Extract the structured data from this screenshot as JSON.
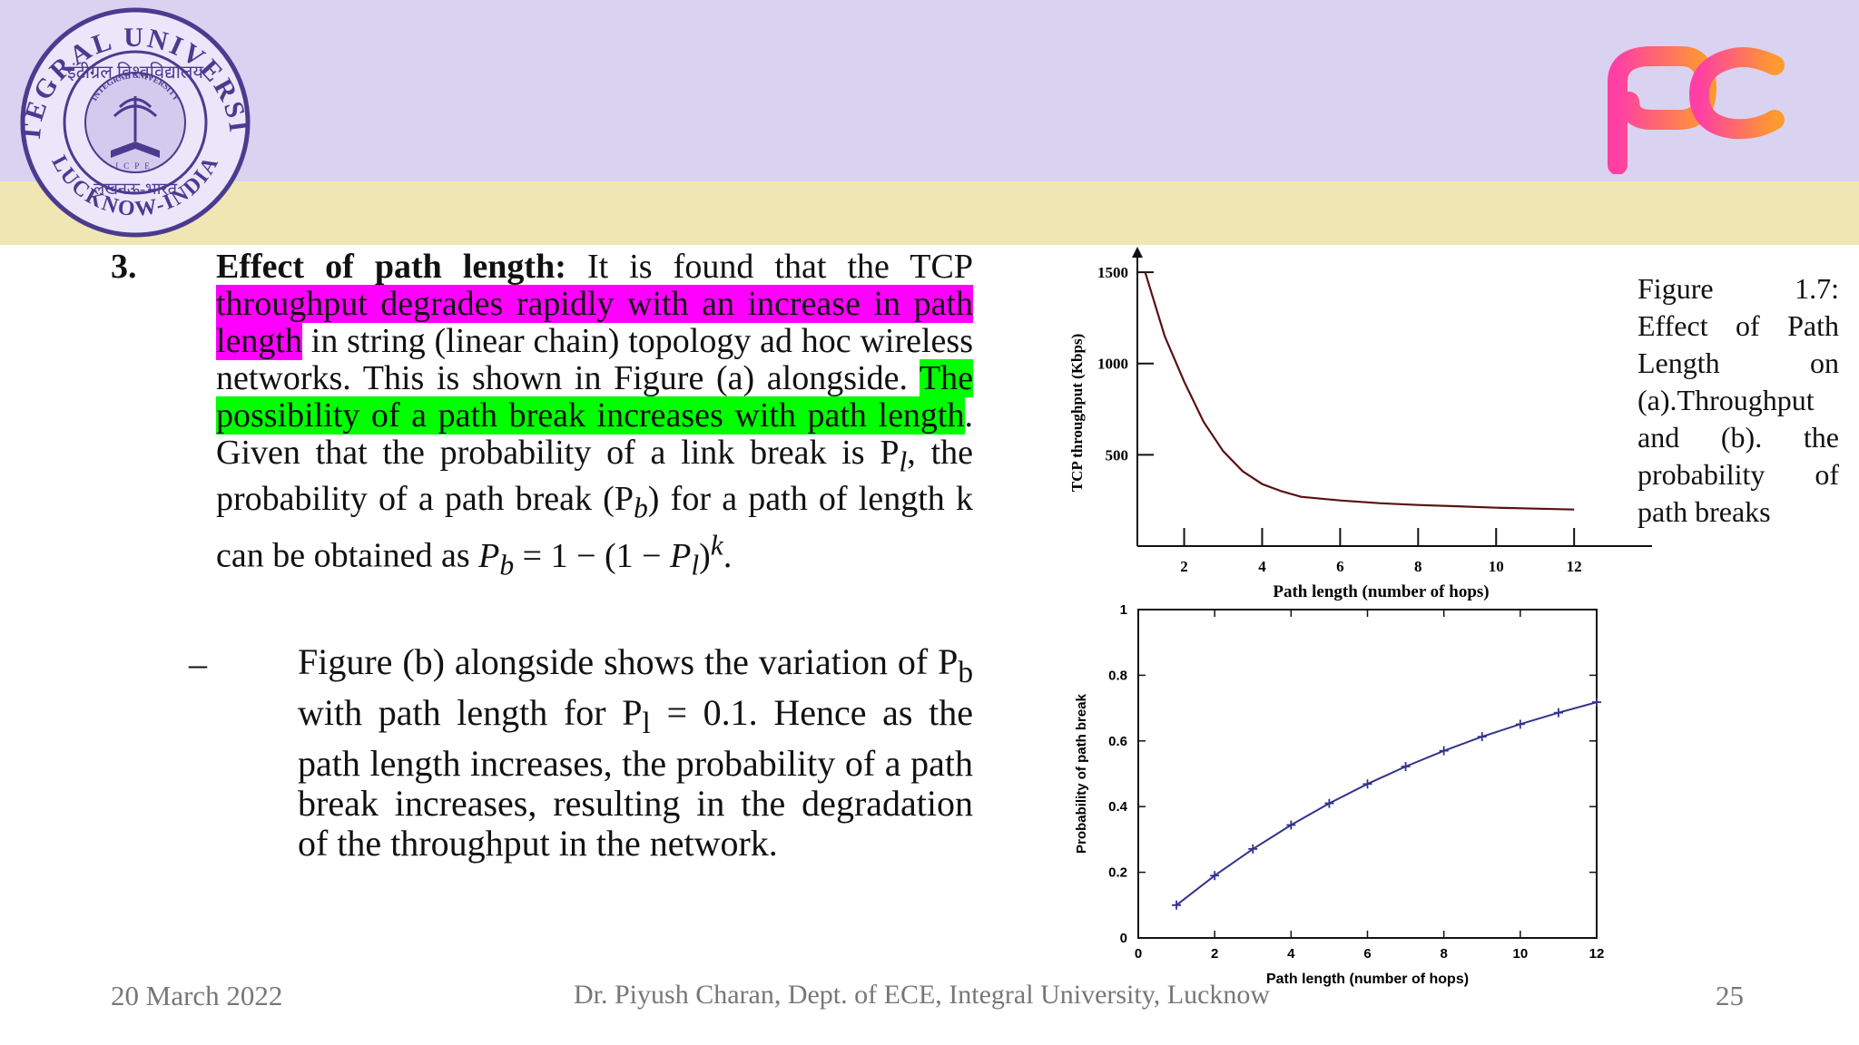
{
  "header": {
    "logo_left": {
      "text_top": "INTEGRAL UNIVERSITY",
      "text_bottom": "LUCKNOW-INDIA",
      "text_hindi": "इंटीग्रल विश्वविद्यालय",
      "text_hindi_city": "लखनऊ-भारत",
      "text_center": "INTEGRAL UNIVERSITY",
      "text_inner": "ICPE"
    },
    "logo_right": "pc-logo",
    "colors": {
      "top_band": "#d9d2f0",
      "yellow_band": "#efe6b4"
    }
  },
  "point": {
    "number": "3.",
    "heading": "Effect of path length:",
    "text1": " It is found that the TCP ",
    "highlight_magenta": "throughput degrades rapidly with an increase in path length",
    "text2": " in string (linear chain) topology ad hoc wireless networks. This is shown in Figure (a) alongside. ",
    "highlight_green": "The possibility of a path break increases with path length",
    "text3": ". Given that the probability of a link break is P",
    "sub_l": "l",
    "text4": ", the probability of a path break (P",
    "sub_b": "b",
    "text5": ") for a path of length k can be obtained as ",
    "formula_P": "P",
    "formula_sub_b": "b",
    "formula_mid": " = 1 − (1 − ",
    "formula_P2": "P",
    "formula_sub_l": "l",
    "formula_close": ")",
    "formula_sup_k": "k",
    "formula_end": "."
  },
  "subpoint": {
    "dash": "–",
    "text1": "Figure (b) alongside shows the variation of P",
    "sub_b": "b",
    "text2": " with path length for P",
    "sub_l": "l",
    "text3": " = 0.1. Hence as the path length increases, the probability of a path break increases, resulting in the degradation of the throughput in the network."
  },
  "caption": "Figure 1.7: Effect of Path Length on (a).Throughput and (b). the probability of path breaks",
  "footer": {
    "date": "20 March 2022",
    "author": "Dr. Piyush Charan, Dept. of ECE, Integral University, Lucknow",
    "page": "25"
  },
  "chart_data": [
    {
      "type": "line",
      "ylabel": "TCP throughput (Kbps)",
      "xlabel": "Path length (number of hops)",
      "x_ticks": [
        "2",
        "4",
        "6",
        "8",
        "10",
        "12"
      ],
      "y_ticks": [
        "500",
        "1000",
        "1500"
      ],
      "xlim": [
        0.8,
        13.3
      ],
      "ylim": [
        0,
        1560
      ],
      "x": [
        1,
        1.5,
        2,
        2.5,
        3,
        3.5,
        4,
        4.5,
        5,
        6,
        7,
        8,
        9,
        10,
        11,
        12
      ],
      "y": [
        1500,
        1150,
        900,
        680,
        520,
        410,
        340,
        300,
        270,
        250,
        235,
        225,
        218,
        210,
        205,
        200
      ],
      "color": "#5a1010"
    },
    {
      "type": "line",
      "ylabel": "Probability of path break",
      "xlabel": "Path length (number of hops)",
      "x_ticks": [
        "0",
        "2",
        "4",
        "6",
        "8",
        "10",
        "12"
      ],
      "y_ticks": [
        "0",
        "0.2",
        "0.4",
        "0.6",
        "0.8",
        "1"
      ],
      "xlim": [
        0,
        12
      ],
      "ylim": [
        0,
        1
      ],
      "x": [
        1,
        2,
        3,
        4,
        5,
        6,
        7,
        8,
        9,
        10,
        11,
        12
      ],
      "y": [
        0.1,
        0.19,
        0.271,
        0.344,
        0.41,
        0.469,
        0.522,
        0.57,
        0.613,
        0.651,
        0.686,
        0.718
      ],
      "color": "#33338a"
    }
  ]
}
